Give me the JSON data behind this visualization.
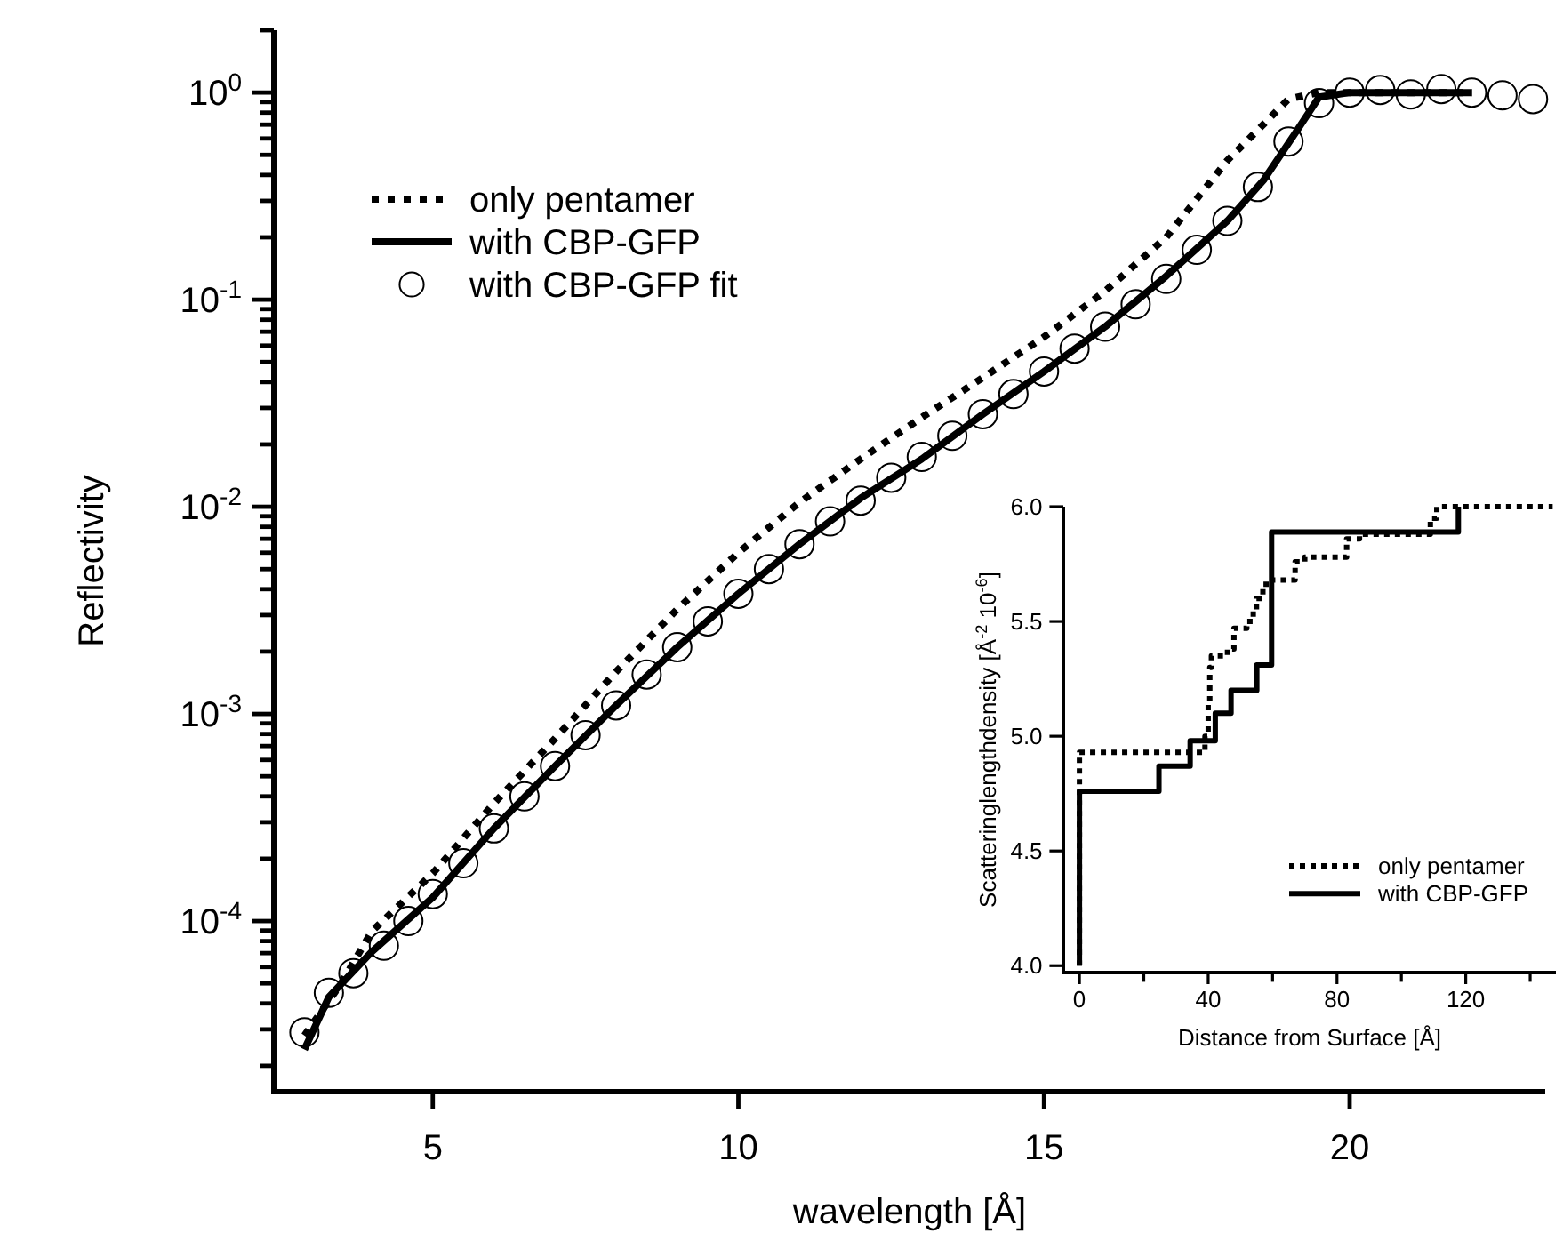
{
  "chart_data": [
    {
      "type": "line",
      "xlabel": "wavelength [Å]",
      "ylabel": "Reflectivity",
      "log": true,
      "legend": "top left",
      "xlim": [
        2.4,
        23.2
      ],
      "xticks": [
        5,
        10,
        15,
        20
      ],
      "ylim": [
        1.5e-05,
        2
      ],
      "yticks": [
        {
          "value": 2e-05,
          "label": null
        },
        {
          "value": 3e-05,
          "label": null
        },
        {
          "value": 4e-05,
          "label": null
        },
        {
          "value": 5e-05,
          "label": null
        },
        {
          "value": 6e-05,
          "label": null
        },
        {
          "value": 7e-05,
          "label": null
        },
        {
          "value": 8e-05,
          "label": null
        },
        {
          "value": 9e-05,
          "label": null
        },
        {
          "value": 0.0001,
          "label": "10$^{-4}$"
        },
        {
          "value": 0.0002,
          "label": null
        },
        {
          "value": 0.0003,
          "label": null
        },
        {
          "value": 0.0004,
          "label": null
        },
        {
          "value": 0.0005,
          "label": null
        },
        {
          "value": 0.0006,
          "label": null
        },
        {
          "value": 0.0007,
          "label": null
        },
        {
          "value": 0.0008,
          "label": null
        },
        {
          "value": 0.0009,
          "label": null
        },
        {
          "value": 0.001,
          "label": "10$^{-3}$"
        },
        {
          "value": 0.002,
          "label": null
        },
        {
          "value": 0.003,
          "label": null
        },
        {
          "value": 0.004,
          "label": null
        },
        {
          "value": 0.005,
          "label": null
        },
        {
          "value": 0.006,
          "label": null
        },
        {
          "value": 0.007,
          "label": null
        },
        {
          "value": 0.008,
          "label": null
        },
        {
          "value": 0.009,
          "label": null
        },
        {
          "value": 0.01,
          "label": "10$^{-2}$"
        },
        {
          "value": 0.02,
          "label": null
        },
        {
          "value": 0.03,
          "label": null
        },
        {
          "value": 0.04,
          "label": null
        },
        {
          "value": 0.05,
          "label": null
        },
        {
          "value": 0.06,
          "label": null
        },
        {
          "value": 0.07,
          "label": null
        },
        {
          "value": 0.08,
          "label": null
        },
        {
          "value": 0.09,
          "label": null
        },
        {
          "value": 0.1,
          "label": "10$^{-1}$"
        },
        {
          "value": 0.2,
          "label": null
        },
        {
          "value": 0.3,
          "label": null
        },
        {
          "value": 0.4,
          "label": null
        },
        {
          "value": 0.5,
          "label": null
        },
        {
          "value": 0.6,
          "label": null
        },
        {
          "value": 0.7,
          "label": null
        },
        {
          "value": 0.8,
          "label": null
        },
        {
          "value": 0.9,
          "label": null
        },
        {
          "value": 1,
          "label": "10$^{0}$"
        },
        {
          "value": 2,
          "label": null
        }
      ],
      "series": [
        {
          "name": "only pentamer",
          "color": "#000000",
          "line_style": "dotted",
          "x": [
            2.9,
            3.5,
            4,
            5,
            6,
            7,
            8,
            9,
            10,
            11,
            12,
            13,
            14,
            15,
            16,
            17,
            18,
            18.5,
            19,
            19.5,
            22
          ],
          "values": [
            2.8e-05,
            5e-05,
            8.9e-05,
            0.00017,
            0.00037,
            0.00076,
            0.0016,
            0.0032,
            0.006,
            0.0105,
            0.017,
            0.027,
            0.042,
            0.066,
            0.11,
            0.2,
            0.47,
            0.66,
            0.93,
            1.0,
            1.0
          ]
        },
        {
          "name": "with CBP-GFP",
          "color": "#000000",
          "line_style": "solid",
          "x": [
            2.9,
            3.3,
            4,
            5,
            6,
            7,
            8,
            9,
            10,
            11,
            12,
            13,
            14,
            15,
            16,
            17,
            18,
            18.6,
            19.1,
            19.5,
            20,
            21,
            22
          ],
          "values": [
            2.4e-05,
            4.3e-05,
            7.1e-05,
            0.00013,
            0.00028,
            0.00056,
            0.0011,
            0.0021,
            0.0038,
            0.0066,
            0.011,
            0.017,
            0.028,
            0.045,
            0.074,
            0.13,
            0.24,
            0.38,
            0.63,
            0.95,
            1.0,
            1.0,
            1.0
          ]
        },
        {
          "name": "with CBP-GFP fit",
          "type": "scatter",
          "marker": "circle",
          "color": "#000000",
          "x": [
            2.9,
            3.3,
            3.7,
            4.2,
            4.6,
            5,
            5.5,
            6,
            6.5,
            7,
            7.5,
            8,
            8.5,
            9,
            9.5,
            10,
            10.5,
            11,
            11.5,
            12,
            12.5,
            13,
            13.5,
            14,
            14.5,
            15,
            15.5,
            16,
            16.5,
            17,
            17.5,
            18,
            18.5,
            19,
            19.5,
            20,
            20.5,
            21,
            21.5,
            22,
            22.5,
            23
          ],
          "values": [
            2.9e-05,
            4.5e-05,
            5.6e-05,
            7.6e-05,
            0.0001,
            0.000135,
            0.00019,
            0.00028,
            0.0004,
            0.00056,
            0.00079,
            0.0011,
            0.00155,
            0.0021,
            0.0028,
            0.0038,
            0.005,
            0.0066,
            0.0085,
            0.0107,
            0.0138,
            0.0174,
            0.022,
            0.028,
            0.035,
            0.045,
            0.058,
            0.074,
            0.095,
            0.126,
            0.174,
            0.24,
            0.35,
            0.58,
            0.89,
            1.0,
            1.03,
            0.98,
            1.04,
            1.0,
            0.97,
            0.93
          ]
        }
      ]
    },
    {
      "type": "step",
      "xlabel": "Distance from Surface [Å]",
      "ylabel": "Scatteringlengthdensity [Å$^{-2}$ 10$^{-6}$]",
      "legend": "bottom right",
      "xlim": [
        -5,
        148
      ],
      "xticks": [
        0,
        {
          "value": 20,
          "label": null
        },
        40,
        {
          "value": 60,
          "label": null
        },
        80,
        {
          "value": 100,
          "label": null
        },
        120,
        {
          "value": 140,
          "label": null
        }
      ],
      "ylim": [
        3.97,
        6.0
      ],
      "yticks": [
        {
          "value": 4,
          "label": "4.0"
        },
        {
          "value": 4.5,
          "label": "4.5"
        },
        {
          "value": 5,
          "label": "5.0"
        },
        {
          "value": 5.5,
          "label": "5.5"
        },
        {
          "value": 6,
          "label": "6.0"
        }
      ],
      "series": [
        {
          "name": "only pentamer",
          "color": "#000000",
          "line_style": "dotted",
          "x": [
            0,
            0,
            39,
            40,
            40.5,
            41,
            45,
            46,
            48,
            52,
            54,
            55,
            57,
            58,
            65,
            67,
            70,
            78,
            83,
            87,
            107,
            109,
            111,
            147
          ],
          "values": [
            4.0,
            4.93,
            5.0,
            5.15,
            5.3,
            5.35,
            5.35,
            5.38,
            5.47,
            5.5,
            5.55,
            5.6,
            5.65,
            5.68,
            5.68,
            5.76,
            5.78,
            5.78,
            5.86,
            5.88,
            5.88,
            5.95,
            6.0,
            6.0
          ]
        },
        {
          "name": "with CBP-GFP",
          "color": "#000000",
          "line_style": "solid",
          "x": [
            0,
            0,
            24.7,
            34.4,
            42.2,
            47.1,
            55.1,
            59.7,
            117.7
          ],
          "values": [
            4.0,
            4.76,
            4.87,
            4.98,
            5.1,
            5.2,
            5.31,
            5.89,
            6.0
          ]
        }
      ]
    }
  ]
}
